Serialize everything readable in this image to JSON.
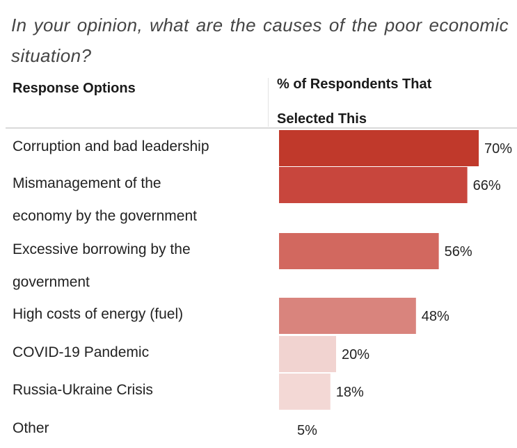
{
  "question": "In your opinion, what are the causes of the poor economic situation?",
  "header": {
    "response_col": "Response Options",
    "percent_col": "% of Respondents That Selected This"
  },
  "chart_data": {
    "type": "bar",
    "orientation": "horizontal",
    "title": "",
    "xlabel": "% of Respondents That Selected This",
    "ylabel": "Response Options",
    "xlim": [
      0,
      100
    ],
    "grid": false,
    "legend": "none",
    "categories": [
      [
        "Corruption and bad leadership"
      ],
      [
        "Mismanagement of the",
        "economy by the government"
      ],
      [
        "Excessive borrowing by the",
        "government"
      ],
      [
        "High costs of energy (fuel)"
      ],
      [
        "COVID-19 Pandemic"
      ],
      [
        "Russia-Ukraine Crisis"
      ],
      [
        "Other"
      ]
    ],
    "values": [
      70,
      66,
      56,
      48,
      20,
      18,
      5
    ],
    "value_labels": [
      "70%",
      "66%",
      "56%",
      "48%",
      "20%",
      "18%",
      "5%"
    ],
    "bar_colors": [
      "#c0392b",
      "#c8463d",
      "#d2685f",
      "#d9847d",
      "#f1d3d0",
      "#f3d8d5",
      "#ffffff"
    ]
  }
}
